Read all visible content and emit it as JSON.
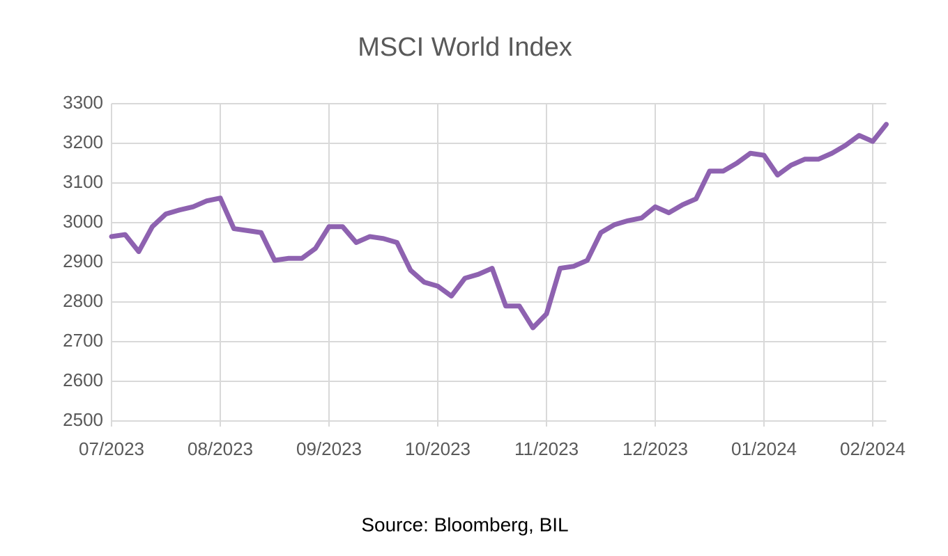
{
  "chart_data": {
    "type": "line",
    "title": "MSCI World Index",
    "source": "Source: Bloomberg, BIL",
    "categories": [
      "07/2023",
      null,
      null,
      null,
      null,
      null,
      null,
      null,
      "08/2023",
      null,
      null,
      null,
      null,
      null,
      null,
      null,
      "09/2023",
      null,
      null,
      null,
      null,
      null,
      null,
      null,
      "10/2023",
      null,
      null,
      null,
      null,
      null,
      null,
      null,
      "11/2023",
      null,
      null,
      null,
      null,
      null,
      null,
      null,
      "12/2023",
      null,
      null,
      null,
      null,
      null,
      null,
      null,
      "01/2024",
      null,
      null,
      null,
      null,
      null,
      null,
      null,
      "02/2024",
      null
    ],
    "series": [
      {
        "name": "MSCI World Index",
        "color": "#8e62b0",
        "values": [
          2965,
          2970,
          2927,
          2990,
          3022,
          3032,
          3040,
          3055,
          3062,
          2985,
          2980,
          2975,
          2905,
          2910,
          2910,
          2935,
          2990,
          2990,
          2950,
          2965,
          2960,
          2950,
          2880,
          2850,
          2840,
          2815,
          2860,
          2870,
          2885,
          2790,
          2790,
          2735,
          2770,
          2885,
          2890,
          2905,
          2975,
          2995,
          3005,
          3012,
          3040,
          3025,
          3045,
          3060,
          3130,
          3130,
          3150,
          3175,
          3170,
          3120,
          3145,
          3160,
          3160,
          3175,
          3195,
          3220,
          3205,
          3248
        ]
      }
    ],
    "ylim": [
      2500,
      3300
    ],
    "yticks": [
      2500,
      2600,
      2700,
      2800,
      2900,
      3000,
      3100,
      3200,
      3300
    ],
    "grid": true
  }
}
